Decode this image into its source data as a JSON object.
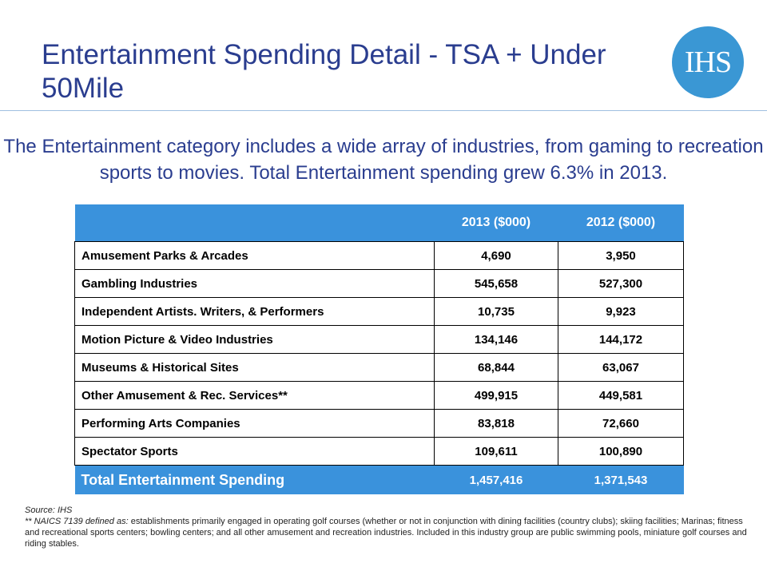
{
  "slide": {
    "title": "Entertainment Spending Detail - TSA + Under 50Mile",
    "logo_text": "IHS",
    "intro": "The Entertainment category includes a wide array of industries, from gaming to recreation sports to movies. Total Entertainment spending grew 6.3% in 2013."
  },
  "table": {
    "headers": [
      "",
      "2013 ($000)",
      "2012 ($000)"
    ],
    "rows": [
      {
        "label": "Amusement Parks & Arcades",
        "y2013": "4,690",
        "y2012": "3,950"
      },
      {
        "label": "Gambling Industries",
        "y2013": "545,658",
        "y2012": "527,300"
      },
      {
        "label": "Independent Artists. Writers, & Performers",
        "y2013": "10,735",
        "y2012": "9,923"
      },
      {
        "label": "Motion Picture & Video Industries",
        "y2013": "134,146",
        "y2012": "144,172"
      },
      {
        "label": "Museums & Historical Sites",
        "y2013": "68,844",
        "y2012": "63,067"
      },
      {
        "label": "Other Amusement & Rec. Services**",
        "y2013": "499,915",
        "y2012": "449,581"
      },
      {
        "label": "Performing Arts Companies",
        "y2013": "83,818",
        "y2012": "72,660"
      },
      {
        "label": "Spectator Sports",
        "y2013": "109,611",
        "y2012": "100,890"
      }
    ],
    "total": {
      "label": "Total Entertainment Spending",
      "y2013": "1,457,416",
      "y2012": "1,371,543"
    }
  },
  "footnote": {
    "source": "Source:  IHS",
    "naics_lead": "** NAICS 7139 defined as:",
    "naics_text": " establishments primarily engaged in operating golf courses (whether or not in conjunction with dining facilities (country clubs); skiing facilities; Marinas; fitness and recreational sports centers; bowling centers; and all other amusement and recreation industries. Included in this industry group are public swimming pools, miniature golf courses and riding stables."
  },
  "colors": {
    "title": "#2a3d8f",
    "header_fill": "#3a92dc",
    "logo_fill": "#3a97d4"
  }
}
